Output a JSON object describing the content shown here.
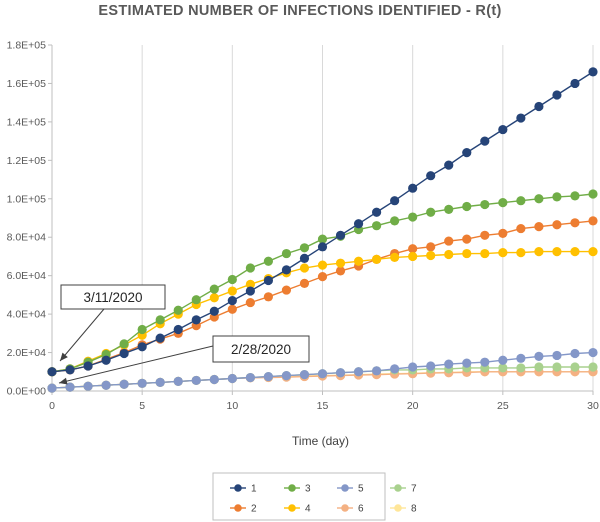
{
  "chart_data": {
    "type": "line",
    "title": "ESTIMATED NUMBER OF INFECTIONS IDENTIFIED - R(t)",
    "xlabel": "Time (day)",
    "ylabel": "",
    "xlim": [
      0,
      30
    ],
    "ylim": [
      0,
      180000
    ],
    "xticks": [
      0,
      5,
      10,
      15,
      20,
      25,
      30
    ],
    "xtick_labels": [
      "0",
      "5",
      "10",
      "15",
      "20",
      "25",
      "30"
    ],
    "yticks": [
      0,
      20000,
      40000,
      60000,
      80000,
      100000,
      120000,
      140000,
      160000,
      180000
    ],
    "ytick_labels": [
      "0.0E+00",
      "2.0E+04",
      "4.0E+04",
      "6.0E+04",
      "8.0E+04",
      "1.0E+05",
      "1.2E+05",
      "1.4E+05",
      "1.6E+05",
      "1.8E+05"
    ],
    "grid": "vertical",
    "legend_position": "bottom",
    "annotations": [
      {
        "text": "3/11/2020",
        "x": 0,
        "y": 10000
      },
      {
        "text": "2/28/2020",
        "x": 0,
        "y": 2000
      }
    ],
    "series": [
      {
        "name": "1",
        "color": "#264478",
        "x": [
          0,
          1,
          2,
          3,
          4,
          5,
          6,
          7,
          8,
          9,
          10,
          11,
          12,
          13,
          14,
          15,
          16,
          17,
          18,
          19,
          20,
          21,
          22,
          23,
          24,
          25,
          26,
          27,
          28,
          29,
          30
        ],
        "values": [
          10000,
          11000,
          13000,
          16000,
          19500,
          23000,
          27500,
          32000,
          37000,
          41500,
          47000,
          52000,
          57500,
          63000,
          69000,
          75000,
          81000,
          87000,
          93000,
          99000,
          105500,
          112000,
          117500,
          124000,
          130000,
          136000,
          142000,
          148000,
          154000,
          160000,
          166000
        ]
      },
      {
        "name": "2",
        "color": "#ED7D31",
        "x": [
          0,
          1,
          2,
          3,
          4,
          5,
          6,
          7,
          8,
          9,
          10,
          11,
          12,
          13,
          14,
          15,
          16,
          17,
          18,
          19,
          20,
          21,
          22,
          23,
          24,
          25,
          26,
          27,
          28,
          29,
          30
        ],
        "values": [
          10000,
          11000,
          13000,
          16500,
          20000,
          24000,
          27000,
          30000,
          34000,
          38500,
          42500,
          46000,
          49000,
          52500,
          56000,
          59500,
          62500,
          65000,
          68500,
          71500,
          74000,
          75000,
          78000,
          79000,
          81000,
          82000,
          84500,
          85500,
          86500,
          87500,
          88500
        ]
      },
      {
        "name": "3",
        "color": "#70AD47",
        "x": [
          0,
          1,
          2,
          3,
          4,
          5,
          6,
          7,
          8,
          9,
          10,
          11,
          12,
          13,
          14,
          15,
          16,
          17,
          18,
          19,
          20,
          21,
          22,
          23,
          24,
          25,
          26,
          27,
          28,
          29,
          30
        ],
        "values": [
          10000,
          11500,
          15000,
          19000,
          24500,
          32000,
          37000,
          42000,
          47500,
          53000,
          58000,
          64000,
          67500,
          71500,
          74500,
          79000,
          80500,
          84000,
          86000,
          88500,
          90500,
          93000,
          94500,
          96000,
          97000,
          98000,
          99000,
          100000,
          101000,
          101500,
          102500
        ]
      },
      {
        "name": "4",
        "color": "#FFC000",
        "x": [
          0,
          1,
          2,
          3,
          4,
          5,
          6,
          7,
          8,
          9,
          10,
          11,
          12,
          13,
          14,
          15,
          16,
          17,
          18,
          19,
          20,
          21,
          22,
          23,
          24,
          25,
          26,
          27,
          28,
          29,
          30
        ],
        "values": [
          10000,
          11500,
          15500,
          19500,
          24000,
          29000,
          35000,
          40000,
          45000,
          48500,
          52000,
          55500,
          58500,
          61500,
          64000,
          65500,
          66500,
          67500,
          68500,
          69500,
          70000,
          70500,
          71000,
          71500,
          71500,
          72000,
          72000,
          72500,
          72500,
          72500,
          72500
        ]
      },
      {
        "name": "5",
        "color": "#8497C8",
        "x": [
          0,
          1,
          2,
          3,
          4,
          5,
          6,
          7,
          8,
          9,
          10,
          11,
          12,
          13,
          14,
          15,
          16,
          17,
          18,
          19,
          20,
          21,
          22,
          23,
          24,
          25,
          26,
          27,
          28,
          29,
          30
        ],
        "values": [
          1500,
          2000,
          2500,
          3000,
          3500,
          4000,
          4500,
          5000,
          5500,
          6000,
          6500,
          7000,
          7500,
          8000,
          8500,
          9000,
          9500,
          10000,
          10500,
          11500,
          12500,
          13000,
          14000,
          14500,
          15000,
          16000,
          17000,
          18000,
          18500,
          19500,
          20000
        ]
      },
      {
        "name": "6",
        "color": "#F4B183",
        "x": [
          0,
          1,
          2,
          3,
          4,
          5,
          6,
          7,
          8,
          9,
          10,
          11,
          12,
          13,
          14,
          15,
          16,
          17,
          18,
          19,
          20,
          21,
          22,
          23,
          24,
          25,
          26,
          27,
          28,
          29,
          30
        ],
        "values": [
          1500,
          2000,
          2500,
          3000,
          3500,
          4000,
          4500,
          5000,
          5500,
          6000,
          6500,
          6800,
          7000,
          7200,
          7500,
          7800,
          8000,
          8300,
          8500,
          8800,
          9000,
          9300,
          9500,
          9700,
          10000,
          10000,
          10000,
          10000,
          10000,
          10000,
          10000
        ]
      },
      {
        "name": "7",
        "color": "#A9D18E",
        "x": [
          0,
          1,
          2,
          3,
          4,
          5,
          6,
          7,
          8,
          9,
          10,
          11,
          12,
          13,
          14,
          15,
          16,
          17,
          18,
          19,
          20,
          21,
          22,
          23,
          24,
          25,
          26,
          27,
          28,
          29,
          30
        ],
        "values": [
          1500,
          2000,
          2500,
          3000,
          3500,
          4000,
          4500,
          5000,
          5500,
          6000,
          6500,
          7000,
          7500,
          8000,
          8500,
          9000,
          9500,
          10000,
          10500,
          11000,
          11000,
          11500,
          11500,
          12000,
          12000,
          12000,
          12000,
          12500,
          12500,
          12500,
          12500
        ]
      },
      {
        "name": "8",
        "color": "#FFE699",
        "x": [
          0,
          1,
          2,
          3,
          4,
          5,
          6,
          7,
          8,
          9,
          10,
          11,
          12,
          13,
          14,
          15,
          16,
          17,
          18,
          19,
          20,
          21,
          22,
          23,
          24,
          25,
          26,
          27,
          28,
          29,
          30
        ],
        "values": [
          1500,
          2000,
          2500,
          3000,
          3500,
          4000,
          4500,
          5000,
          5500,
          6000,
          6500,
          7000,
          7200,
          7500,
          7800,
          8000,
          8200,
          8500,
          8800,
          9000,
          9200,
          9500,
          9700,
          10000,
          10000,
          10000,
          10000,
          10000,
          10000,
          10000,
          10000
        ]
      }
    ]
  }
}
